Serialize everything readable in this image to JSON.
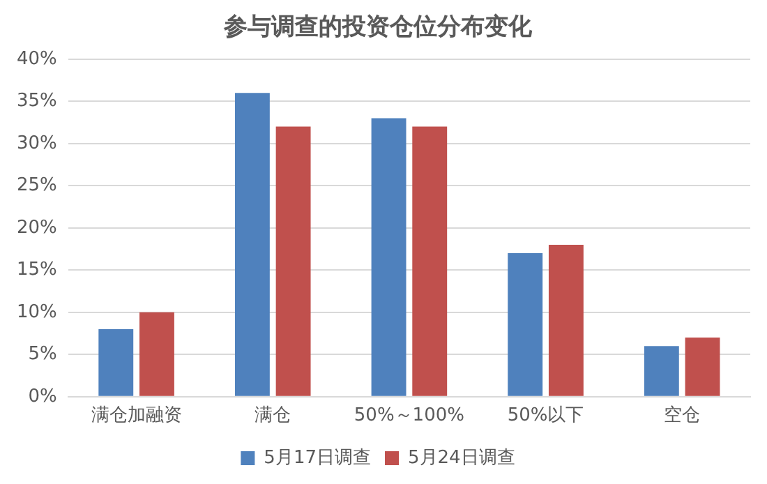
{
  "chart_data": {
    "type": "bar",
    "title": "参与调查的投资仓位分布变化",
    "categories": [
      "满仓加融资",
      "满仓",
      "50%～100%",
      "50%以下",
      "空仓"
    ],
    "series": [
      {
        "name": "5月17日调查",
        "color": "#4f81bd",
        "values": [
          8,
          36,
          33,
          17,
          6
        ]
      },
      {
        "name": "5月24日调查",
        "color": "#c0504d",
        "values": [
          10,
          32,
          32,
          18,
          7
        ]
      }
    ],
    "ylim": [
      0,
      40
    ],
    "yticks": [
      {
        "value": 0,
        "label": "0%"
      },
      {
        "value": 5,
        "label": "5%"
      },
      {
        "value": 10,
        "label": "10%"
      },
      {
        "value": 15,
        "label": "15%"
      },
      {
        "value": 20,
        "label": "20%"
      },
      {
        "value": 25,
        "label": "25%"
      },
      {
        "value": 30,
        "label": "30%"
      },
      {
        "value": 35,
        "label": "35%"
      },
      {
        "value": 40,
        "label": "40%"
      }
    ],
    "grid": "y",
    "legend": "bottom"
  }
}
